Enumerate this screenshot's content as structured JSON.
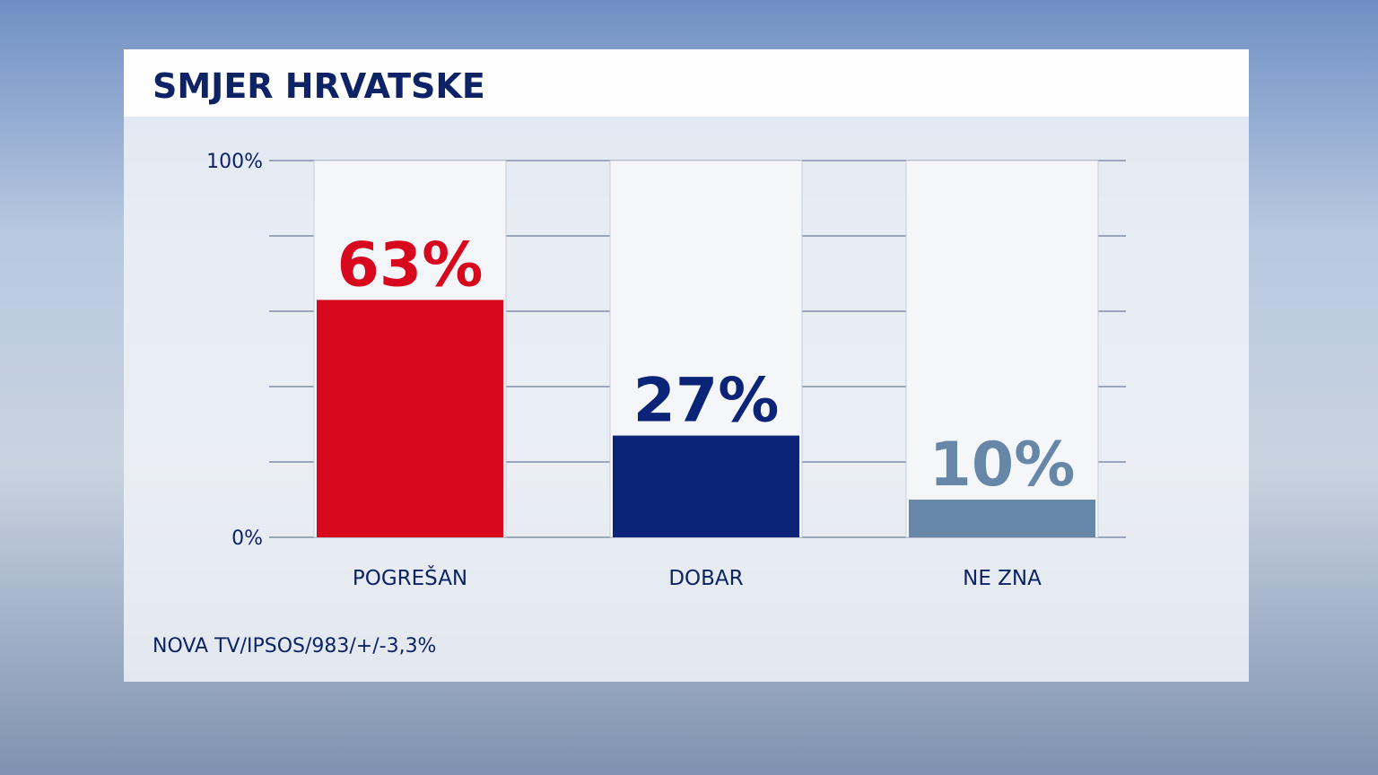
{
  "chart_data": {
    "type": "bar",
    "title": "SMJER HRVATSKE",
    "categories": [
      "POGREŠAN",
      "DOBAR",
      "NE ZNA"
    ],
    "values": [
      63,
      27,
      10
    ],
    "value_labels": [
      "63%",
      "27%",
      "10%"
    ],
    "colors": [
      "#d7071e",
      "#0b2477",
      "#6787a8"
    ],
    "ylim": [
      0,
      100
    ],
    "yticks": [
      {
        "value": 0,
        "label": "0%"
      },
      {
        "value": 100,
        "label": "100%"
      }
    ],
    "minor_yticks": [
      20,
      40,
      60,
      80
    ],
    "source": "NOVA TV/IPSOS/983/+/-3,3%"
  }
}
